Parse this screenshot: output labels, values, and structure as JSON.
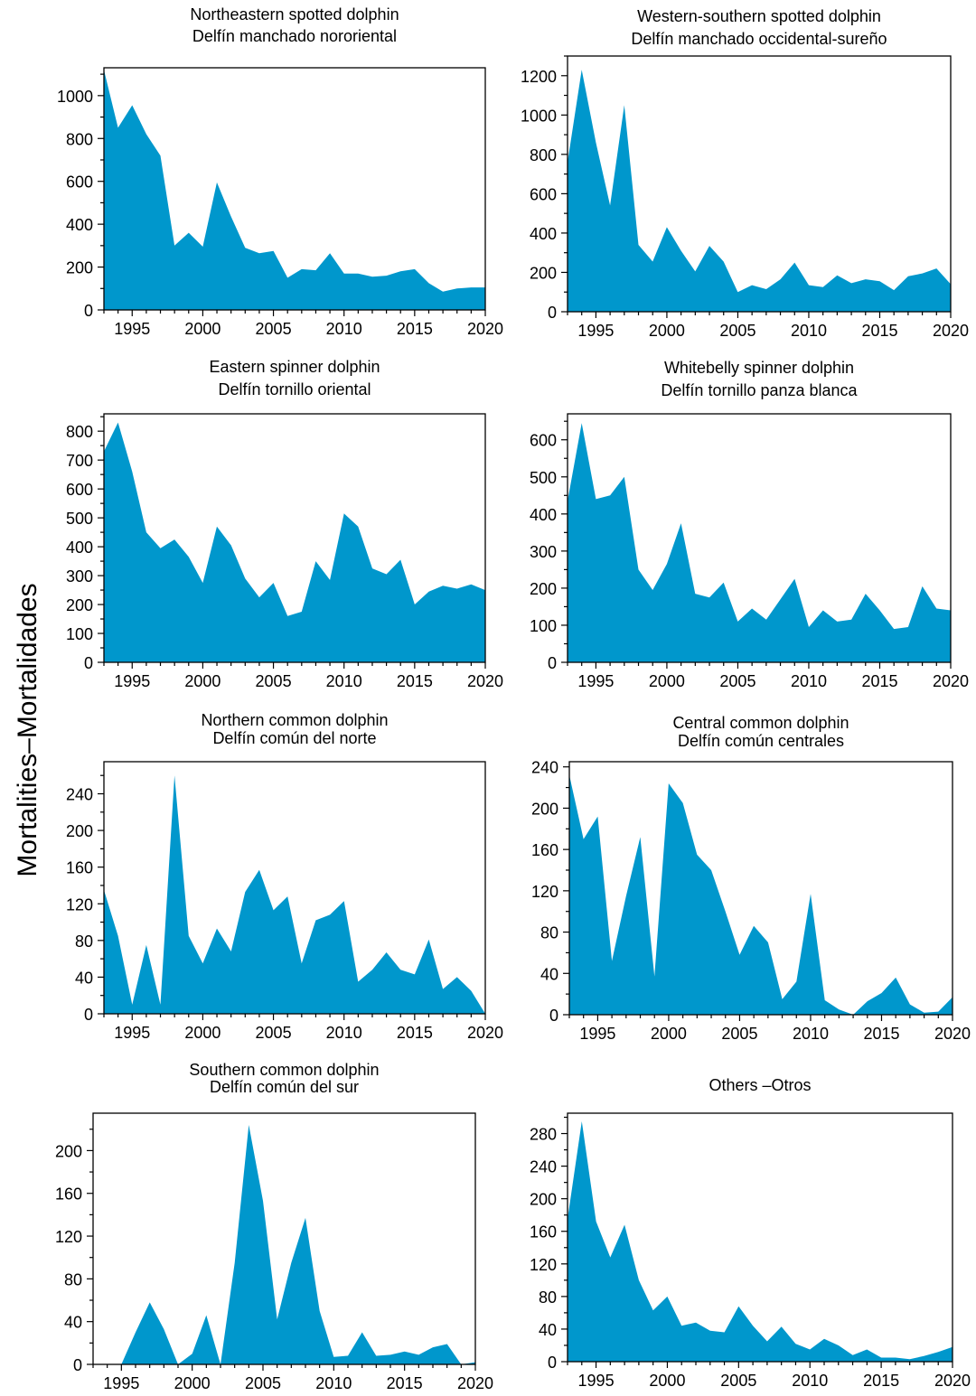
{
  "ylabel": "Mortalities–Mortalidades",
  "area_color": "#0097CC",
  "chart_data": [
    {
      "type": "area",
      "title": "Northeastern spotted dolphin",
      "subtitle": "Delfín manchado nororiental",
      "x": [
        1993,
        1994,
        1995,
        1996,
        1997,
        1998,
        1999,
        2000,
        2001,
        2002,
        2003,
        2004,
        2005,
        2006,
        2007,
        2008,
        2009,
        2010,
        2011,
        2012,
        2013,
        2014,
        2015,
        2016,
        2017,
        2018,
        2019,
        2020
      ],
      "values": [
        1120,
        850,
        955,
        820,
        720,
        300,
        360,
        295,
        595,
        435,
        290,
        265,
        275,
        150,
        190,
        185,
        265,
        170,
        170,
        155,
        160,
        180,
        190,
        125,
        85,
        100,
        105,
        105
      ],
      "xlim": [
        1993,
        2020
      ],
      "ylim": [
        0,
        1130
      ],
      "xticks": [
        1995,
        2000,
        2005,
        2010,
        2015,
        2020
      ],
      "yticks": [
        0,
        200,
        400,
        600,
        800,
        1000
      ]
    },
    {
      "type": "area",
      "title": "Western-southern spotted dolphin",
      "subtitle": "Delfín manchado occidental-sureño",
      "x": [
        1993,
        1994,
        1995,
        1996,
        1997,
        1998,
        1999,
        2000,
        2001,
        2002,
        2003,
        2004,
        2005,
        2006,
        2007,
        2008,
        2009,
        2010,
        2011,
        2012,
        2013,
        2014,
        2015,
        2016,
        2017,
        2018,
        2019,
        2020
      ],
      "values": [
        760,
        1230,
        860,
        540,
        1050,
        340,
        255,
        430,
        310,
        205,
        335,
        255,
        100,
        135,
        115,
        165,
        250,
        135,
        125,
        185,
        145,
        165,
        155,
        110,
        180,
        195,
        220,
        140
      ],
      "xlim": [
        1993,
        2020
      ],
      "ylim": [
        0,
        1300
      ],
      "xticks": [
        1995,
        2000,
        2005,
        2010,
        2015,
        2020
      ],
      "yticks": [
        0,
        200,
        400,
        600,
        800,
        1000,
        1200
      ]
    },
    {
      "type": "area",
      "title": "Eastern spinner dolphin",
      "subtitle": "Delfín tornillo oriental",
      "x": [
        1993,
        1994,
        1995,
        1996,
        1997,
        1998,
        1999,
        2000,
        2001,
        2002,
        2003,
        2004,
        2005,
        2006,
        2007,
        2008,
        2009,
        2010,
        2011,
        2012,
        2013,
        2014,
        2015,
        2016,
        2017,
        2018,
        2019,
        2020
      ],
      "values": [
        730,
        830,
        660,
        450,
        395,
        425,
        365,
        275,
        470,
        405,
        290,
        225,
        275,
        160,
        175,
        350,
        285,
        515,
        470,
        325,
        305,
        355,
        200,
        245,
        265,
        255,
        270,
        250
      ],
      "xlim": [
        1993,
        2020
      ],
      "ylim": [
        0,
        860
      ],
      "xticks": [
        1995,
        2000,
        2005,
        2010,
        2015,
        2020
      ],
      "yticks": [
        0,
        100,
        200,
        300,
        400,
        500,
        600,
        700,
        800
      ]
    },
    {
      "type": "area",
      "title": "Whitebelly spinner dolphin",
      "subtitle": "Delfín tornillo panza blanca",
      "x": [
        1993,
        1994,
        1995,
        1996,
        1997,
        1998,
        1999,
        2000,
        2001,
        2002,
        2003,
        2004,
        2005,
        2006,
        2007,
        2008,
        2009,
        2010,
        2011,
        2012,
        2013,
        2014,
        2015,
        2016,
        2017,
        2018,
        2019,
        2020
      ],
      "values": [
        435,
        645,
        440,
        450,
        500,
        250,
        195,
        265,
        375,
        185,
        175,
        215,
        110,
        145,
        115,
        170,
        225,
        95,
        140,
        110,
        115,
        185,
        140,
        90,
        95,
        205,
        145,
        140
      ],
      "xlim": [
        1993,
        2020
      ],
      "ylim": [
        0,
        670
      ],
      "xticks": [
        1995,
        2000,
        2005,
        2010,
        2015,
        2020
      ],
      "yticks": [
        0,
        100,
        200,
        300,
        400,
        500,
        600
      ]
    },
    {
      "type": "area",
      "title": "Northern common dolphin",
      "subtitle": "Delfín común del norte",
      "x": [
        1993,
        1994,
        1995,
        1996,
        1997,
        1998,
        1999,
        2000,
        2001,
        2002,
        2003,
        2004,
        2005,
        2006,
        2007,
        2008,
        2009,
        2010,
        2011,
        2012,
        2013,
        2014,
        2015,
        2016,
        2017,
        2018,
        2019,
        2020
      ],
      "values": [
        135,
        85,
        10,
        75,
        10,
        260,
        85,
        55,
        93,
        68,
        133,
        157,
        113,
        128,
        55,
        102,
        108,
        123,
        35,
        48,
        67,
        48,
        43,
        81,
        27,
        40,
        25,
        0
      ],
      "xlim": [
        1993,
        2020
      ],
      "ylim": [
        0,
        275
      ],
      "xticks": [
        1995,
        2000,
        2005,
        2010,
        2015,
        2020
      ],
      "yticks": [
        0,
        40,
        80,
        120,
        160,
        200,
        240
      ]
    },
    {
      "type": "area",
      "title": "Central common dolphin",
      "subtitle": "Delfín común centrales",
      "x": [
        1993,
        1994,
        1995,
        1996,
        1997,
        1998,
        1999,
        2000,
        2001,
        2002,
        2003,
        2004,
        2005,
        2006,
        2007,
        2008,
        2009,
        2010,
        2011,
        2012,
        2013,
        2014,
        2015,
        2016,
        2017,
        2018,
        2019,
        2020
      ],
      "values": [
        232,
        170,
        192,
        52,
        115,
        172,
        37,
        224,
        205,
        155,
        140,
        100,
        58,
        86,
        70,
        15,
        32,
        117,
        14,
        5,
        0,
        13,
        21,
        36,
        10,
        2,
        3,
        17
      ],
      "xlim": [
        1993,
        2020
      ],
      "ylim": [
        0,
        245
      ],
      "xticks": [
        1995,
        2000,
        2005,
        2010,
        2015,
        2020
      ],
      "yticks": [
        0,
        40,
        80,
        120,
        160,
        200,
        240
      ]
    },
    {
      "type": "area",
      "title": "Southern common dolphin",
      "subtitle": "Delfín común del sur",
      "x": [
        1993,
        1994,
        1995,
        1996,
        1997,
        1998,
        1999,
        2000,
        2001,
        2002,
        2003,
        2004,
        2005,
        2006,
        2007,
        2008,
        2009,
        2010,
        2011,
        2012,
        2013,
        2014,
        2015,
        2016,
        2017,
        2018,
        2019,
        2020
      ],
      "values": [
        0,
        0,
        0,
        30,
        58,
        33,
        0,
        10,
        46,
        0,
        95,
        224,
        153,
        42,
        95,
        137,
        50,
        7,
        8,
        30,
        8,
        9,
        12,
        9,
        16,
        19,
        0,
        2
      ],
      "xlim": [
        1993,
        2020
      ],
      "ylim": [
        0,
        235
      ],
      "xticks": [
        1995,
        2000,
        2005,
        2010,
        2015,
        2020
      ],
      "yticks": [
        0,
        40,
        80,
        120,
        160,
        200
      ]
    },
    {
      "type": "area",
      "title": "Others –Otros",
      "subtitle": "",
      "x": [
        1993,
        1994,
        1995,
        1996,
        1997,
        1998,
        1999,
        2000,
        2001,
        2002,
        2003,
        2004,
        2005,
        2006,
        2007,
        2008,
        2009,
        2010,
        2011,
        2012,
        2013,
        2014,
        2015,
        2016,
        2017,
        2018,
        2019,
        2020
      ],
      "values": [
        175,
        295,
        172,
        128,
        168,
        100,
        63,
        80,
        44,
        48,
        38,
        36,
        68,
        44,
        25,
        43,
        22,
        15,
        28,
        20,
        8,
        15,
        5,
        5,
        3,
        7,
        12,
        18
      ],
      "xlim": [
        1993,
        2020
      ],
      "ylim": [
        0,
        305
      ],
      "xticks": [
        1995,
        2000,
        2005,
        2010,
        2015,
        2020
      ],
      "yticks": [
        0,
        40,
        80,
        120,
        160,
        200,
        240,
        280
      ]
    }
  ]
}
